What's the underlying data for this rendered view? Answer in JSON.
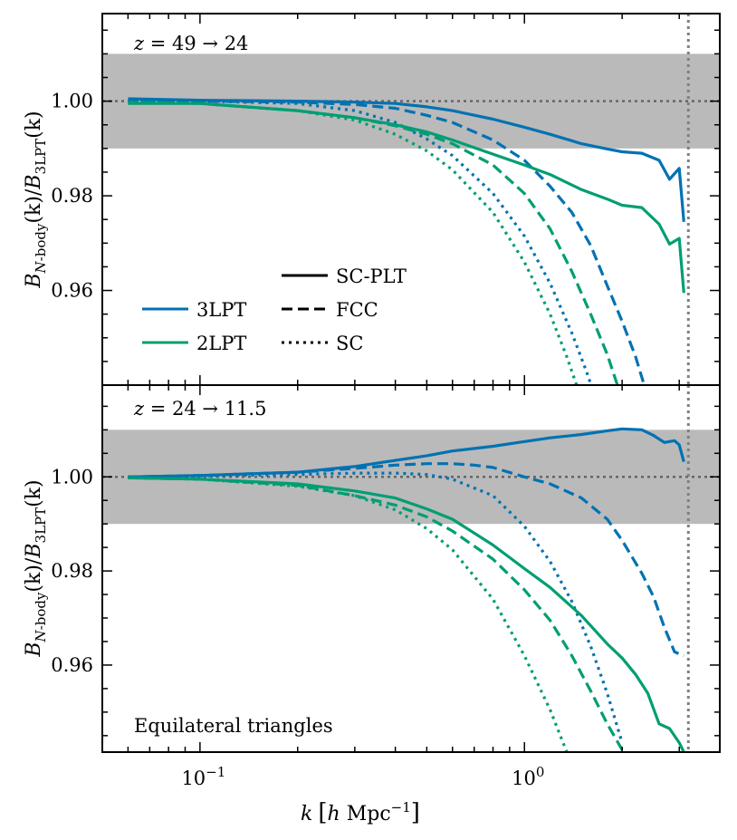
{
  "colors": {
    "c3lpt": "#0072b2",
    "c2lpt": "#009e73",
    "band": "#bababa",
    "refline": "#666666",
    "nyquist": "#808080"
  },
  "chart_data": [
    {
      "type": "line",
      "panel": "top",
      "title": "z = 49 → 24",
      "title_parts": {
        "var": "z",
        "text": " = 49 → 24"
      },
      "xscale": "log",
      "xlim": [
        0.05,
        4.0
      ],
      "ylim": [
        0.94,
        1.0185
      ],
      "band": [
        0.99,
        1.01
      ],
      "reference_y": 1.0,
      "vline_x": 3.2,
      "yticks": [
        0.96,
        0.98,
        1.0
      ],
      "ytick_labels": [
        "0.96",
        "0.98",
        "1.00"
      ],
      "series": [
        {
          "name": "3LPT SC-PLT",
          "code": "3LPT",
          "scheme": "SC-PLT",
          "style": "solid",
          "x": [
            0.06,
            0.1,
            0.2,
            0.3,
            0.4,
            0.5,
            0.6,
            0.8,
            1.0,
            1.2,
            1.5,
            1.8,
            2.0,
            2.3,
            2.6,
            2.8,
            3.0,
            3.1
          ],
          "y": [
            1.0005,
            1.0002,
            1.0,
            0.9998,
            0.9995,
            0.9988,
            0.998,
            0.9962,
            0.9945,
            0.993,
            0.991,
            0.9899,
            0.9893,
            0.989,
            0.9875,
            0.9835,
            0.9858,
            0.9745
          ]
        },
        {
          "name": "3LPT FCC",
          "code": "3LPT",
          "scheme": "FCC",
          "style": "dashed",
          "x": [
            0.06,
            0.1,
            0.2,
            0.3,
            0.4,
            0.5,
            0.6,
            0.8,
            1.0,
            1.2,
            1.4,
            1.6,
            1.8,
            2.0,
            2.2,
            2.4
          ],
          "y": [
            1.0,
            1.0,
            0.9998,
            0.9993,
            0.9985,
            0.997,
            0.9955,
            0.9918,
            0.9875,
            0.982,
            0.9765,
            0.9695,
            0.961,
            0.9535,
            0.946,
            0.9375
          ]
        },
        {
          "name": "3LPT SC",
          "code": "3LPT",
          "scheme": "SC",
          "style": "dotted",
          "x": [
            0.06,
            0.1,
            0.2,
            0.3,
            0.4,
            0.5,
            0.6,
            0.8,
            1.0,
            1.2,
            1.4,
            1.55,
            1.7
          ],
          "y": [
            1.0,
            1.0,
            0.9995,
            0.998,
            0.9955,
            0.992,
            0.9885,
            0.9805,
            0.9715,
            0.9615,
            0.951,
            0.943,
            0.935
          ]
        },
        {
          "name": "2LPT SC-PLT",
          "code": "2LPT",
          "scheme": "SC-PLT",
          "style": "solid",
          "x": [
            0.06,
            0.1,
            0.2,
            0.3,
            0.4,
            0.5,
            0.6,
            0.8,
            1.0,
            1.2,
            1.5,
            1.8,
            2.0,
            2.3,
            2.6,
            2.8,
            3.0,
            3.1
          ],
          "y": [
            0.9995,
            0.9995,
            0.998,
            0.9965,
            0.995,
            0.9935,
            0.9918,
            0.9888,
            0.9865,
            0.9845,
            0.9813,
            0.9793,
            0.978,
            0.9775,
            0.974,
            0.9698,
            0.971,
            0.9595
          ]
        },
        {
          "name": "2LPT FCC",
          "code": "2LPT",
          "scheme": "FCC",
          "style": "dashed",
          "x": [
            0.06,
            0.1,
            0.2,
            0.3,
            0.4,
            0.5,
            0.6,
            0.8,
            1.0,
            1.2,
            1.4,
            1.6,
            1.8,
            2.0
          ],
          "y": [
            0.9998,
            0.9995,
            0.998,
            0.9965,
            0.9948,
            0.993,
            0.991,
            0.9865,
            0.9805,
            0.973,
            0.964,
            0.955,
            0.9465,
            0.937
          ]
        },
        {
          "name": "2LPT SC",
          "code": "2LPT",
          "scheme": "SC",
          "style": "dotted",
          "x": [
            0.06,
            0.1,
            0.2,
            0.3,
            0.4,
            0.5,
            0.6,
            0.8,
            1.0,
            1.2,
            1.35,
            1.5
          ],
          "y": [
            0.9998,
            0.9995,
            0.998,
            0.996,
            0.993,
            0.9895,
            0.9855,
            0.9765,
            0.966,
            0.955,
            0.946,
            0.937
          ]
        }
      ]
    },
    {
      "type": "line",
      "panel": "bottom",
      "title": "z = 24 → 11.5",
      "title_parts": {
        "var": "z",
        "text": " = 24 → 11.5"
      },
      "annotation": "Equilateral triangles",
      "xscale": "log",
      "xlim": [
        0.05,
        4.0
      ],
      "ylim": [
        0.9415,
        1.0195
      ],
      "band": [
        0.99,
        1.01
      ],
      "reference_y": 1.0,
      "vline_x": 3.2,
      "yticks": [
        0.96,
        0.98,
        1.0
      ],
      "ytick_labels": [
        "0.96",
        "0.98",
        "1.00"
      ],
      "series": [
        {
          "name": "3LPT SC-PLT",
          "code": "3LPT",
          "scheme": "SC-PLT",
          "style": "solid",
          "x": [
            0.06,
            0.1,
            0.2,
            0.3,
            0.4,
            0.5,
            0.6,
            0.8,
            1.0,
            1.2,
            1.5,
            1.8,
            2.0,
            2.3,
            2.5,
            2.7,
            2.9,
            3.0,
            3.1
          ],
          "y": [
            1.0,
            1.0003,
            1.001,
            1.0022,
            1.0035,
            1.0045,
            1.0055,
            1.0065,
            1.0075,
            1.0083,
            1.009,
            1.0098,
            1.0102,
            1.01,
            1.0088,
            1.0073,
            1.0077,
            1.0068,
            1.0032
          ]
        },
        {
          "name": "3LPT FCC",
          "code": "3LPT",
          "scheme": "FCC",
          "style": "dashed",
          "x": [
            0.06,
            0.1,
            0.2,
            0.3,
            0.4,
            0.5,
            0.6,
            0.7,
            0.8,
            1.0,
            1.2,
            1.5,
            1.8,
            2.0,
            2.3,
            2.5,
            2.7,
            2.9,
            3.1
          ],
          "y": [
            1.0,
            1.0003,
            1.001,
            1.0018,
            1.0025,
            1.0028,
            1.0028,
            1.0025,
            1.002,
            1.0,
            0.9985,
            0.9955,
            0.991,
            0.9865,
            0.9795,
            0.9745,
            0.968,
            0.9628,
            0.962
          ]
        },
        {
          "name": "3LPT SC",
          "code": "3LPT",
          "scheme": "SC",
          "style": "dotted",
          "x": [
            0.06,
            0.1,
            0.2,
            0.3,
            0.4,
            0.5,
            0.6,
            0.8,
            1.0,
            1.2,
            1.4,
            1.6,
            1.8,
            2.0
          ],
          "y": [
            1.0,
            1.0002,
            1.0005,
            1.0008,
            1.0008,
            1.0005,
            0.9995,
            0.996,
            0.9895,
            0.982,
            0.9735,
            0.964,
            0.954,
            0.9435
          ]
        },
        {
          "name": "2LPT SC-PLT",
          "code": "2LPT",
          "scheme": "SC-PLT",
          "style": "solid",
          "x": [
            0.06,
            0.1,
            0.2,
            0.3,
            0.4,
            0.5,
            0.6,
            0.8,
            1.0,
            1.2,
            1.5,
            1.8,
            2.0,
            2.2,
            2.4,
            2.6,
            2.8,
            3.0,
            3.1
          ],
          "y": [
            0.9998,
            0.9995,
            0.9985,
            0.997,
            0.9955,
            0.9932,
            0.991,
            0.9855,
            0.9805,
            0.9765,
            0.9705,
            0.9645,
            0.9615,
            0.958,
            0.954,
            0.9475,
            0.9465,
            0.9435,
            0.9415
          ]
        },
        {
          "name": "2LPT FCC",
          "code": "2LPT",
          "scheme": "FCC",
          "style": "dashed",
          "x": [
            0.06,
            0.1,
            0.2,
            0.3,
            0.4,
            0.5,
            0.6,
            0.8,
            1.0,
            1.2,
            1.4,
            1.6,
            1.8,
            2.0,
            2.1
          ],
          "y": [
            0.9998,
            0.9995,
            0.9982,
            0.996,
            0.994,
            0.9915,
            0.9885,
            0.9825,
            0.976,
            0.9695,
            0.962,
            0.9545,
            0.9475,
            0.942,
            0.9405
          ]
        },
        {
          "name": "2LPT SC",
          "code": "2LPT",
          "scheme": "SC",
          "style": "dotted",
          "x": [
            0.06,
            0.1,
            0.2,
            0.3,
            0.4,
            0.5,
            0.6,
            0.8,
            1.0,
            1.2,
            1.35
          ],
          "y": [
            0.9998,
            0.9995,
            0.998,
            0.996,
            0.993,
            0.989,
            0.9845,
            0.974,
            0.962,
            0.9505,
            0.9415
          ]
        }
      ]
    }
  ],
  "legend": {
    "codes": [
      {
        "label": "3LPT",
        "color": "#0072b2"
      },
      {
        "label": "2LPT",
        "color": "#009e73"
      }
    ],
    "schemes": [
      {
        "label": "SC-PLT",
        "style": "solid"
      },
      {
        "label": "FCC",
        "style": "dashed"
      },
      {
        "label": "SC",
        "style": "dotted"
      }
    ]
  },
  "axes": {
    "xlabel": {
      "k": "k",
      "open": "[",
      "h": "h",
      "unit": " Mpc",
      "exp": "−1",
      "close": "]"
    },
    "ylabel": {
      "B": "B",
      "num_sub_N": "N",
      "num_sub_rest": "-body",
      "arg": "(k)",
      "slash": "/",
      "den_sub": "3LPT"
    },
    "xtick_labels": [
      {
        "x": 0.1,
        "base": "10",
        "exp": "−1"
      },
      {
        "x": 1,
        "base": "10",
        "exp": "0"
      }
    ]
  }
}
